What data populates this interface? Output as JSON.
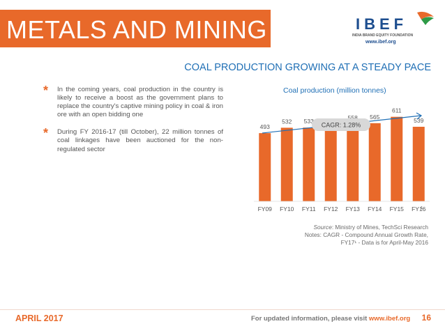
{
  "header": {
    "title": "METALS AND MINING",
    "logo_text": "IBEF",
    "logo_tagline": "INDIA BRAND EQUITY FOUNDATION",
    "logo_url": "www.ibef.org"
  },
  "subtitle": "COAL PRODUCTION GROWING AT A STEADY PACE",
  "bullets": [
    "In the coming years, coal production in the country is likely to receive a boost as the government plans to replace the country's captive mining policy in coal & iron ore with an open bidding one",
    "During FY 2016-17 (till October), 22 million tonnes of coal linkages have been auctioned for  the non-regulated sector"
  ],
  "chart_data": {
    "type": "bar",
    "title": "Coal production (million tonnes)",
    "categories": [
      "FY09",
      "FY10",
      "FY11",
      "FY12",
      "FY13",
      "FY14",
      "FY15",
      "FY16"
    ],
    "values": [
      493,
      532,
      533,
      540,
      558,
      565,
      611,
      539
    ],
    "data_labels": [
      "493",
      "532",
      "533",
      "540",
      "558",
      "565",
      "611",
      "539"
    ],
    "last_category_superscript": "1",
    "annotation": "CAGR: 1.28%",
    "ylim": [
      0,
      700
    ],
    "bar_color": "#e8692a",
    "arrow_color": "#1f6fb5",
    "grid": false,
    "legend": "none"
  },
  "source": {
    "label": "Source",
    "text": ": Ministry of Mines, TechSci Research",
    "notes_line1": "Notes: CAGR - Compound Annual Growth Rate,",
    "notes_line2": "FY17¹ - Data is for April-May 2016"
  },
  "footer": {
    "date": "APRIL 2017",
    "text": "For updated information, please visit ",
    "url": "www.ibef.org",
    "page": "16"
  },
  "colors": {
    "accent": "#e8692a",
    "title_blue": "#1f6fb5"
  }
}
